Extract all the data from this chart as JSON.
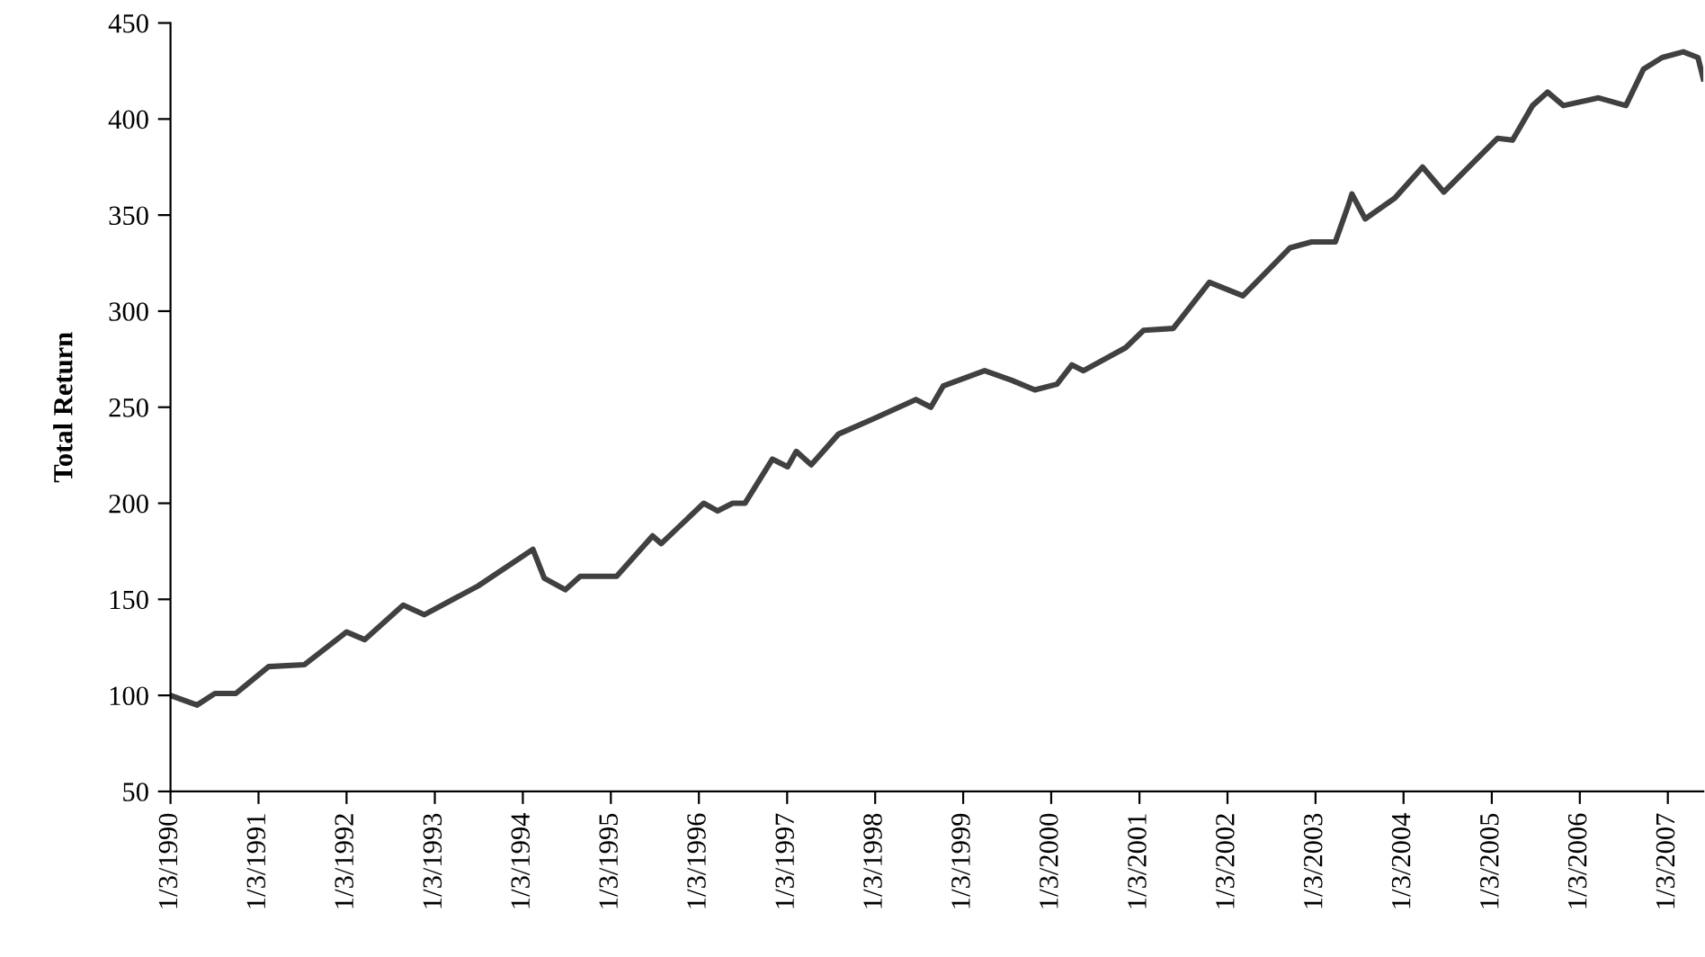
{
  "chart_data": {
    "type": "line",
    "ylabel": "Total Return",
    "x": [
      "1990-01-03",
      "1990-04-23",
      "1990-07-06",
      "1990-10-01",
      "1991-02-14",
      "1991-07-13",
      "1992-01-03",
      "1992-03-18",
      "1992-08-25",
      "1992-11-21",
      "1993-07-02",
      "1994-02-14",
      "1994-04-02",
      "1994-06-28",
      "1994-08-29",
      "1995-01-27",
      "1995-06-25",
      "1995-07-31",
      "1996-01-23",
      "1996-03-21",
      "1996-05-22",
      "1996-07-12",
      "1996-11-03",
      "1997-01-05",
      "1997-02-10",
      "1997-04-13",
      "1997-08-04",
      "1997-12-28",
      "1998-06-21",
      "1998-08-22",
      "1998-10-12",
      "1999-04-02",
      "1999-07-24",
      "1999-10-27",
      "2000-01-27",
      "2000-03-29",
      "2000-05-16",
      "2000-11-07",
      "2001-01-20",
      "2001-05-23",
      "2001-10-20",
      "2002-03-08",
      "2002-09-20",
      "2002-12-17",
      "2003-03-26",
      "2003-05-16",
      "2003-06-03",
      "2003-07-28",
      "2003-11-29",
      "2004-03-22",
      "2004-06-18",
      "2005-01-27",
      "2005-03-30",
      "2005-06-21",
      "2005-08-22",
      "2005-10-27",
      "2006-03-22",
      "2006-07-13",
      "2006-09-24",
      "2006-12-10",
      "2007-03-08",
      "2007-05-08",
      "2007-05-30"
    ],
    "series": [
      {
        "color": "#404040",
        "values": [
          100,
          95,
          101,
          101,
          115,
          116,
          133,
          129,
          147,
          142,
          157,
          176,
          161,
          155,
          162,
          162,
          183,
          179,
          200,
          196,
          200,
          200,
          223,
          219,
          227,
          220,
          236,
          244,
          254,
          250,
          261,
          269,
          264,
          259,
          262,
          272,
          269,
          281,
          290,
          291,
          315,
          308,
          333,
          336,
          336,
          354,
          361,
          348,
          359,
          375,
          362,
          390,
          389,
          407,
          414,
          407,
          411,
          407,
          426,
          432,
          435,
          432,
          421
        ]
      }
    ],
    "xlim": [
      "1990-01-03",
      "2007-05-30"
    ],
    "xticks": [
      {
        "value": "1990-01-03",
        "label": "1/3/1990"
      },
      {
        "value": "1991-01-03",
        "label": "1/3/1991"
      },
      {
        "value": "1992-01-03",
        "label": "1/3/1992"
      },
      {
        "value": "1993-01-03",
        "label": "1/3/1993"
      },
      {
        "value": "1994-01-03",
        "label": "1/3/1994"
      },
      {
        "value": "1995-01-03",
        "label": "1/3/1995"
      },
      {
        "value": "1996-01-03",
        "label": "1/3/1996"
      },
      {
        "value": "1997-01-03",
        "label": "1/3/1997"
      },
      {
        "value": "1998-01-03",
        "label": "1/3/1998"
      },
      {
        "value": "1999-01-03",
        "label": "1/3/1999"
      },
      {
        "value": "2000-01-03",
        "label": "1/3/2000"
      },
      {
        "value": "2001-01-03",
        "label": "1/3/2001"
      },
      {
        "value": "2002-01-03",
        "label": "1/3/2002"
      },
      {
        "value": "2003-01-03",
        "label": "1/3/2003"
      },
      {
        "value": "2004-01-03",
        "label": "1/3/2004"
      },
      {
        "value": "2005-01-03",
        "label": "1/3/2005"
      },
      {
        "value": "2006-01-03",
        "label": "1/3/2006"
      },
      {
        "value": "2007-01-03",
        "label": "1/3/2007"
      }
    ],
    "ylim": [
      50,
      450
    ],
    "yticks": [
      50,
      100,
      150,
      200,
      250,
      300,
      350,
      400,
      450
    ],
    "grid": false,
    "legend": false,
    "marker": "none",
    "line_style": "solid"
  }
}
